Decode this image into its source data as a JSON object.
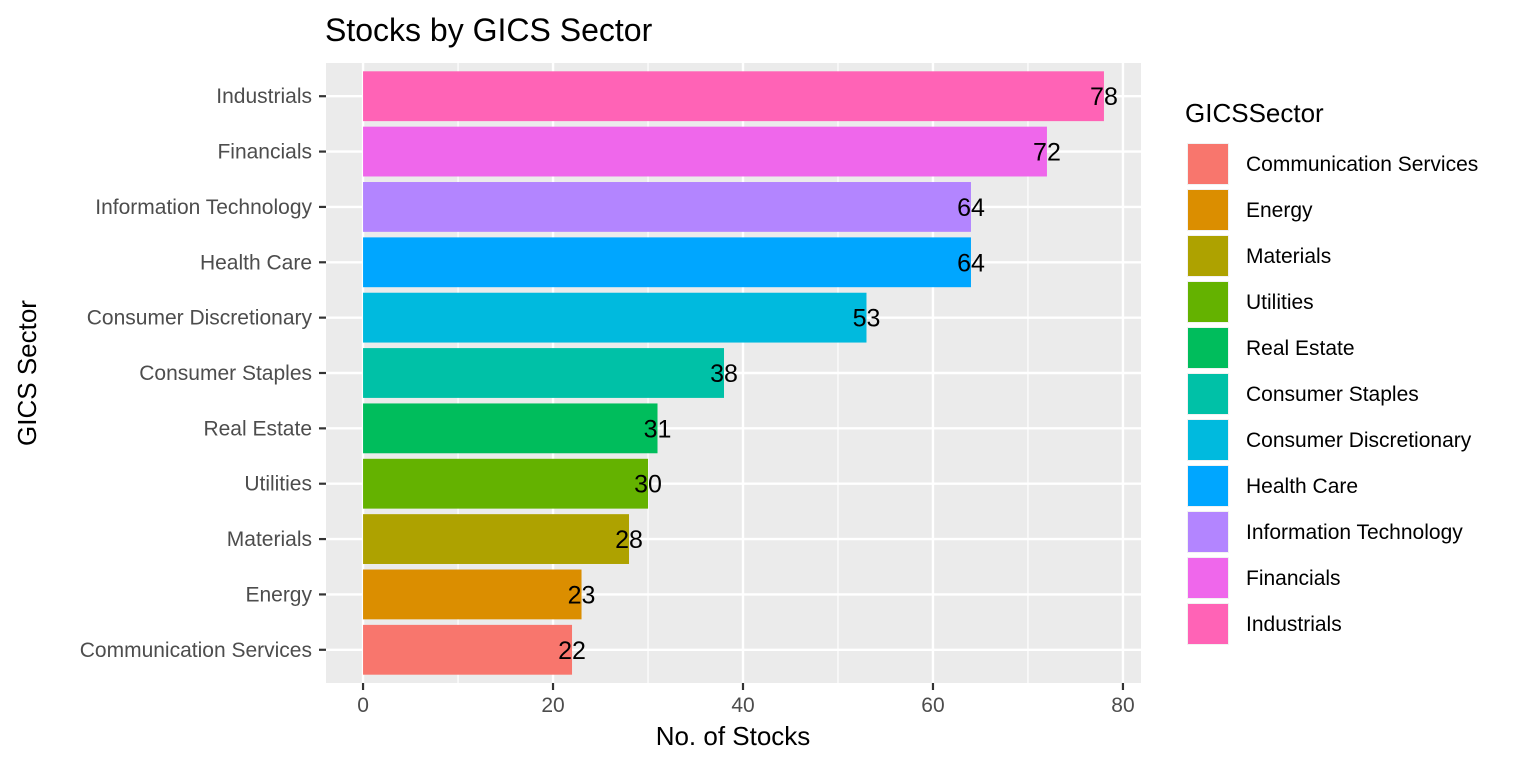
{
  "chart_data": {
    "type": "bar",
    "orientation": "horizontal",
    "title": "Stocks by GICS Sector",
    "xlabel": "No. of Stocks",
    "ylabel": "GICS Sector",
    "xlim": [
      -3.9,
      81.9
    ],
    "x_ticks": [
      0,
      20,
      40,
      60,
      80
    ],
    "categories": [
      "Communication Services",
      "Energy",
      "Materials",
      "Utilities",
      "Real Estate",
      "Consumer Staples",
      "Consumer Discretionary",
      "Health Care",
      "Information Technology",
      "Financials",
      "Industrials"
    ],
    "values": [
      22,
      23,
      28,
      30,
      31,
      38,
      53,
      64,
      64,
      72,
      78
    ],
    "colors": [
      "#F8766D",
      "#DB8E00",
      "#AEA200",
      "#64B200",
      "#00BD5C",
      "#00C1A7",
      "#00BADE",
      "#00A6FF",
      "#B385FF",
      "#EF67EB",
      "#FF63B6"
    ],
    "grid": true,
    "panel_background": "#EBEBEB",
    "legend": {
      "title": "GICSSector",
      "position": "right",
      "items": [
        "Communication Services",
        "Energy",
        "Materials",
        "Utilities",
        "Real Estate",
        "Consumer Staples",
        "Consumer Discretionary",
        "Health Care",
        "Information Technology",
        "Financials",
        "Industrials"
      ]
    }
  }
}
